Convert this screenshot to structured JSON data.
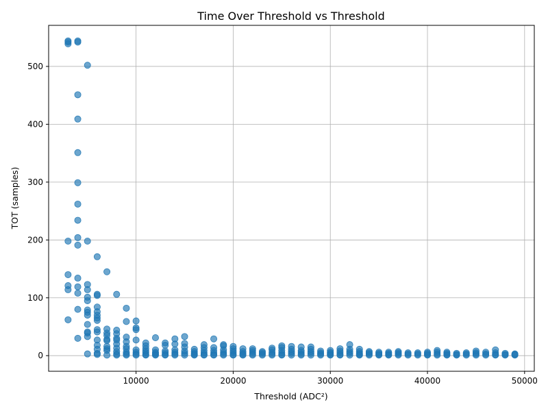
{
  "chart_data": {
    "type": "scatter",
    "title": "Time Over Threshold vs Threshold",
    "xlabel": "Threshold (ADC²)",
    "ylabel": "TOT (samples)",
    "xlim": [
      1000,
      51000
    ],
    "ylim": [
      -27,
      571
    ],
    "xticks": [
      10000,
      20000,
      30000,
      40000,
      50000
    ],
    "yticks": [
      0,
      100,
      200,
      300,
      400,
      500
    ],
    "grid": true,
    "point_color": "#1f77b4",
    "point_alpha": 0.65,
    "series": [
      {
        "points": [
          [
            3000,
            544
          ],
          [
            3000,
            542
          ],
          [
            3000,
            539
          ],
          [
            3000,
            198
          ],
          [
            3000,
            140
          ],
          [
            3000,
            121
          ],
          [
            3000,
            114
          ],
          [
            3000,
            62
          ],
          [
            4000,
            544
          ],
          [
            4000,
            542
          ],
          [
            4000,
            451
          ],
          [
            4000,
            409
          ],
          [
            4000,
            351
          ],
          [
            4000,
            299
          ],
          [
            4000,
            262
          ],
          [
            4000,
            234
          ],
          [
            4000,
            204
          ],
          [
            4000,
            191
          ],
          [
            4000,
            134
          ],
          [
            4000,
            119
          ],
          [
            4000,
            108
          ],
          [
            4000,
            80
          ],
          [
            4000,
            30
          ],
          [
            5000,
            502
          ],
          [
            5000,
            198
          ],
          [
            5000,
            123
          ],
          [
            5000,
            114
          ],
          [
            5000,
            101
          ],
          [
            5000,
            95
          ],
          [
            5000,
            79
          ],
          [
            5000,
            75
          ],
          [
            5000,
            70
          ],
          [
            5000,
            54
          ],
          [
            5000,
            41
          ],
          [
            5000,
            39
          ],
          [
            5000,
            33
          ],
          [
            5000,
            3
          ],
          [
            6000,
            171
          ],
          [
            6000,
            106
          ],
          [
            6000,
            104
          ],
          [
            6000,
            84
          ],
          [
            6000,
            76
          ],
          [
            6000,
            70
          ],
          [
            6000,
            65
          ],
          [
            6000,
            61
          ],
          [
            6000,
            45
          ],
          [
            6000,
            41
          ],
          [
            6000,
            27
          ],
          [
            6000,
            18
          ],
          [
            6000,
            11
          ],
          [
            6000,
            4
          ],
          [
            6000,
            2
          ],
          [
            7000,
            145
          ],
          [
            7000,
            46
          ],
          [
            7000,
            39
          ],
          [
            7000,
            35
          ],
          [
            7000,
            28
          ],
          [
            7000,
            26
          ],
          [
            7000,
            16
          ],
          [
            7000,
            12
          ],
          [
            7000,
            9
          ],
          [
            7000,
            1
          ],
          [
            8000,
            106
          ],
          [
            8000,
            44
          ],
          [
            8000,
            38
          ],
          [
            8000,
            30
          ],
          [
            8000,
            27
          ],
          [
            8000,
            20
          ],
          [
            8000,
            13
          ],
          [
            8000,
            7
          ],
          [
            8000,
            3
          ],
          [
            8000,
            1
          ],
          [
            9000,
            82
          ],
          [
            9000,
            59
          ],
          [
            9000,
            32
          ],
          [
            9000,
            24
          ],
          [
            9000,
            16
          ],
          [
            9000,
            12
          ],
          [
            9000,
            6
          ],
          [
            9000,
            3
          ],
          [
            9000,
            1
          ],
          [
            10000,
            60
          ],
          [
            10000,
            48
          ],
          [
            10000,
            45
          ],
          [
            10000,
            27
          ],
          [
            10000,
            10
          ],
          [
            10000,
            6
          ],
          [
            10000,
            3
          ],
          [
            10000,
            1
          ],
          [
            11000,
            22
          ],
          [
            11000,
            17
          ],
          [
            11000,
            12
          ],
          [
            11000,
            8
          ],
          [
            11000,
            5
          ],
          [
            11000,
            2
          ],
          [
            11000,
            1
          ],
          [
            12000,
            31
          ],
          [
            12000,
            10
          ],
          [
            12000,
            6
          ],
          [
            12000,
            4
          ],
          [
            12000,
            2
          ],
          [
            12000,
            1
          ],
          [
            13000,
            22
          ],
          [
            13000,
            18
          ],
          [
            13000,
            8
          ],
          [
            13000,
            5
          ],
          [
            13000,
            2
          ],
          [
            13000,
            1
          ],
          [
            14000,
            29
          ],
          [
            14000,
            20
          ],
          [
            14000,
            10
          ],
          [
            14000,
            6
          ],
          [
            14000,
            3
          ],
          [
            14000,
            1
          ],
          [
            15000,
            33
          ],
          [
            15000,
            21
          ],
          [
            15000,
            15
          ],
          [
            15000,
            8
          ],
          [
            15000,
            4
          ],
          [
            15000,
            1
          ],
          [
            16000,
            11
          ],
          [
            16000,
            7
          ],
          [
            16000,
            4
          ],
          [
            16000,
            2
          ],
          [
            16000,
            1
          ],
          [
            17000,
            19
          ],
          [
            17000,
            14
          ],
          [
            17000,
            9
          ],
          [
            17000,
            5
          ],
          [
            17000,
            2
          ],
          [
            17000,
            1
          ],
          [
            18000,
            29
          ],
          [
            18000,
            14
          ],
          [
            18000,
            9
          ],
          [
            18000,
            5
          ],
          [
            18000,
            2
          ],
          [
            18000,
            1
          ],
          [
            19000,
            19
          ],
          [
            19000,
            17
          ],
          [
            19000,
            10
          ],
          [
            19000,
            6
          ],
          [
            19000,
            3
          ],
          [
            19000,
            1
          ],
          [
            20000,
            16
          ],
          [
            20000,
            12
          ],
          [
            20000,
            8
          ],
          [
            20000,
            5
          ],
          [
            20000,
            2
          ],
          [
            20000,
            1
          ],
          [
            21000,
            12
          ],
          [
            21000,
            7
          ],
          [
            21000,
            4
          ],
          [
            21000,
            2
          ],
          [
            21000,
            1
          ],
          [
            22000,
            12
          ],
          [
            22000,
            9
          ],
          [
            22000,
            6
          ],
          [
            22000,
            3
          ],
          [
            22000,
            1
          ],
          [
            23000,
            7
          ],
          [
            23000,
            5
          ],
          [
            23000,
            3
          ],
          [
            23000,
            1
          ],
          [
            24000,
            13
          ],
          [
            24000,
            10
          ],
          [
            24000,
            6
          ],
          [
            24000,
            3
          ],
          [
            24000,
            1
          ],
          [
            25000,
            17
          ],
          [
            25000,
            14
          ],
          [
            25000,
            9
          ],
          [
            25000,
            5
          ],
          [
            25000,
            2
          ],
          [
            25000,
            1
          ],
          [
            26000,
            16
          ],
          [
            26000,
            11
          ],
          [
            26000,
            7
          ],
          [
            26000,
            4
          ],
          [
            26000,
            1
          ],
          [
            27000,
            15
          ],
          [
            27000,
            9
          ],
          [
            27000,
            6
          ],
          [
            27000,
            3
          ],
          [
            27000,
            1
          ],
          [
            28000,
            15
          ],
          [
            28000,
            11
          ],
          [
            28000,
            7
          ],
          [
            28000,
            4
          ],
          [
            28000,
            1
          ],
          [
            29000,
            8
          ],
          [
            29000,
            5
          ],
          [
            29000,
            3
          ],
          [
            29000,
            1
          ],
          [
            30000,
            9
          ],
          [
            30000,
            6
          ],
          [
            30000,
            4
          ],
          [
            30000,
            2
          ],
          [
            30000,
            1
          ],
          [
            31000,
            12
          ],
          [
            31000,
            8
          ],
          [
            31000,
            5
          ],
          [
            31000,
            2
          ],
          [
            31000,
            1
          ],
          [
            32000,
            19
          ],
          [
            32000,
            11
          ],
          [
            32000,
            7
          ],
          [
            32000,
            4
          ],
          [
            32000,
            1
          ],
          [
            33000,
            11
          ],
          [
            33000,
            7
          ],
          [
            33000,
            4
          ],
          [
            33000,
            2
          ],
          [
            33000,
            1
          ],
          [
            34000,
            7
          ],
          [
            34000,
            5
          ],
          [
            34000,
            3
          ],
          [
            34000,
            1
          ],
          [
            35000,
            6
          ],
          [
            35000,
            4
          ],
          [
            35000,
            2
          ],
          [
            35000,
            1
          ],
          [
            36000,
            6
          ],
          [
            36000,
            4
          ],
          [
            36000,
            2
          ],
          [
            36000,
            1
          ],
          [
            37000,
            7
          ],
          [
            37000,
            5
          ],
          [
            37000,
            3
          ],
          [
            37000,
            1
          ],
          [
            38000,
            5
          ],
          [
            38000,
            3
          ],
          [
            38000,
            1
          ],
          [
            39000,
            5
          ],
          [
            39000,
            3
          ],
          [
            39000,
            1
          ],
          [
            40000,
            6
          ],
          [
            40000,
            4
          ],
          [
            40000,
            2
          ],
          [
            40000,
            1
          ],
          [
            41000,
            9
          ],
          [
            41000,
            6
          ],
          [
            41000,
            3
          ],
          [
            41000,
            1
          ],
          [
            42000,
            6
          ],
          [
            42000,
            4
          ],
          [
            42000,
            2
          ],
          [
            42000,
            1
          ],
          [
            43000,
            4
          ],
          [
            43000,
            2
          ],
          [
            43000,
            1
          ],
          [
            44000,
            5
          ],
          [
            44000,
            3
          ],
          [
            44000,
            1
          ],
          [
            45000,
            8
          ],
          [
            45000,
            5
          ],
          [
            45000,
            3
          ],
          [
            45000,
            1
          ],
          [
            46000,
            6
          ],
          [
            46000,
            3
          ],
          [
            46000,
            1
          ],
          [
            47000,
            10
          ],
          [
            47000,
            5
          ],
          [
            47000,
            2
          ],
          [
            47000,
            1
          ],
          [
            48000,
            4
          ],
          [
            48000,
            2
          ],
          [
            48000,
            1
          ],
          [
            49000,
            3
          ],
          [
            49000,
            2
          ],
          [
            49000,
            1
          ]
        ]
      }
    ]
  }
}
